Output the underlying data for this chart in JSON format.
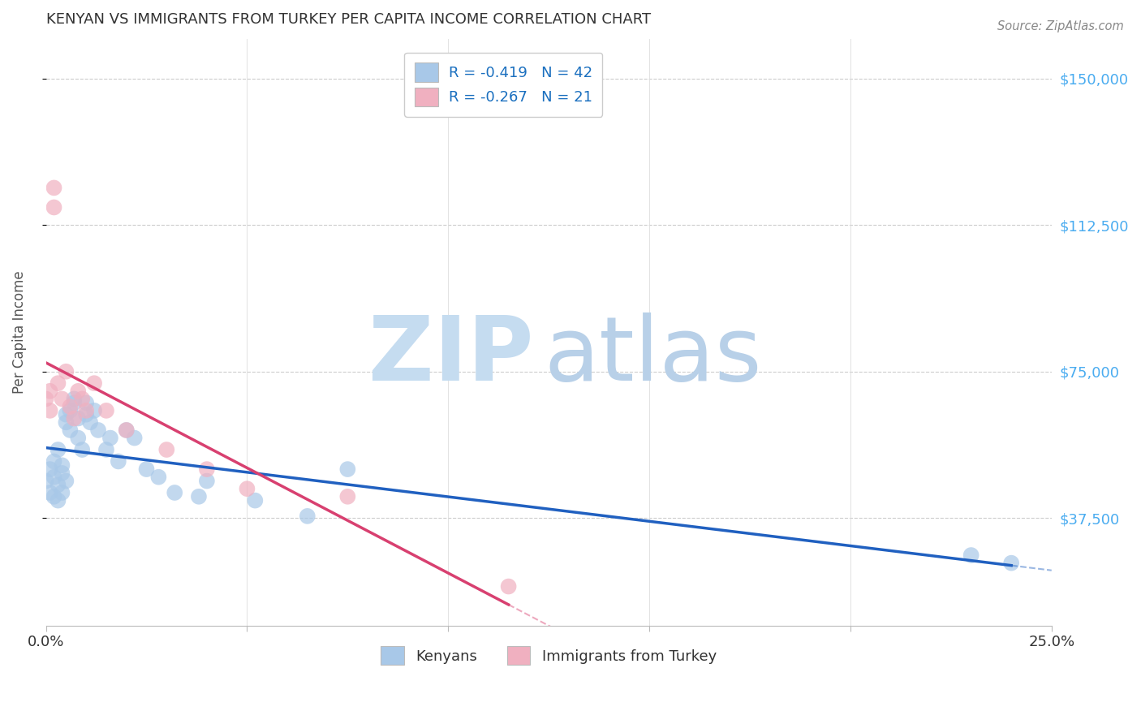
{
  "title": "KENYAN VS IMMIGRANTS FROM TURKEY PER CAPITA INCOME CORRELATION CHART",
  "source": "Source: ZipAtlas.com",
  "ylabel": "Per Capita Income",
  "ytick_labels": [
    "$37,500",
    "$75,000",
    "$112,500",
    "$150,000"
  ],
  "ytick_values": [
    37500,
    75000,
    112500,
    150000
  ],
  "ymin": 10000,
  "ymax": 160000,
  "xmin": 0.0,
  "xmax": 0.25,
  "legend_r1": "R = -0.419   N = 42",
  "legend_r2": "R = -0.267   N = 21",
  "blue_color": "#A8C8E8",
  "pink_color": "#F0B0C0",
  "blue_line_color": "#2060C0",
  "pink_line_color": "#D84070",
  "title_color": "#333333",
  "axis_label_color": "#555555",
  "tick_label_color_right": "#4AACF0",
  "legend_text_color": "#1A6FBF",
  "watermark_zip_color": "#C8DEF0",
  "watermark_atlas_color": "#B8D4EC",
  "background_color": "#FFFFFF",
  "grid_color": "#CCCCCC",
  "kenyans_x": [
    0.0,
    0.001,
    0.001,
    0.002,
    0.002,
    0.002,
    0.003,
    0.003,
    0.003,
    0.004,
    0.004,
    0.004,
    0.005,
    0.005,
    0.005,
    0.006,
    0.006,
    0.007,
    0.007,
    0.008,
    0.008,
    0.009,
    0.01,
    0.01,
    0.011,
    0.012,
    0.013,
    0.015,
    0.016,
    0.018,
    0.02,
    0.022,
    0.025,
    0.028,
    0.032,
    0.038,
    0.04,
    0.052,
    0.065,
    0.075,
    0.23,
    0.24
  ],
  "kenyans_y": [
    47000,
    50000,
    44000,
    52000,
    48000,
    43000,
    55000,
    46000,
    42000,
    49000,
    51000,
    44000,
    47000,
    62000,
    64000,
    65000,
    60000,
    68000,
    67000,
    63000,
    58000,
    55000,
    67000,
    64000,
    62000,
    65000,
    60000,
    55000,
    58000,
    52000,
    60000,
    58000,
    50000,
    48000,
    44000,
    43000,
    47000,
    42000,
    38000,
    50000,
    28000,
    26000
  ],
  "turkey_x": [
    0.0,
    0.001,
    0.001,
    0.002,
    0.002,
    0.003,
    0.004,
    0.005,
    0.006,
    0.007,
    0.008,
    0.009,
    0.01,
    0.012,
    0.015,
    0.02,
    0.03,
    0.04,
    0.05,
    0.075,
    0.115
  ],
  "turkey_y": [
    68000,
    65000,
    70000,
    117000,
    122000,
    72000,
    68000,
    75000,
    66000,
    63000,
    70000,
    68000,
    65000,
    72000,
    65000,
    60000,
    55000,
    50000,
    45000,
    43000,
    20000
  ]
}
